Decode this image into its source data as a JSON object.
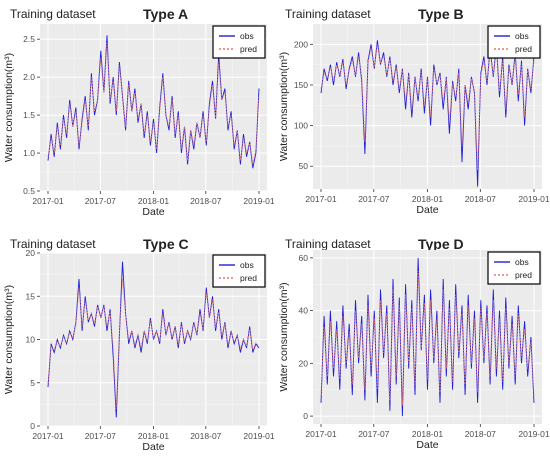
{
  "colors": {
    "panel_bg": "#ebebeb",
    "grid_major": "#ffffff",
    "grid_minor": "#f5f5f5",
    "obs": "#1f1fd6",
    "pred": "#e8776c",
    "text": "#222222",
    "tick_text": "#4d4d4d"
  },
  "legend": {
    "obs_label": "obs",
    "pred_label": "pred",
    "position": "top-right"
  },
  "chart_data": [
    {
      "type": "line",
      "supertitle": "Training dataset",
      "title": "Type A",
      "xlabel": "Date",
      "ylabel": "Water consumption(m³)",
      "ylim": [
        0.5,
        2.7
      ],
      "y_ticks": [
        "0.5",
        "1.0",
        "1.5",
        "2.0",
        "2.5"
      ],
      "y_tick_values": [
        0.5,
        1.0,
        1.5,
        2.0,
        2.5
      ],
      "x_ticks": [
        "2017-01",
        "2017-07",
        "2018-01",
        "2018-07",
        "2019-01"
      ],
      "x_range": [
        "2017-01-01",
        "2019-01-01"
      ],
      "grid": true,
      "series": [
        {
          "name": "obs",
          "style": "solid",
          "values": [
            0.9,
            1.25,
            0.95,
            1.4,
            1.05,
            1.5,
            1.2,
            1.7,
            1.35,
            1.6,
            1.05,
            1.45,
            1.75,
            1.3,
            2.05,
            1.5,
            1.7,
            2.35,
            1.8,
            2.55,
            1.65,
            2.0,
            1.5,
            2.2,
            1.75,
            1.3,
            1.95,
            1.55,
            1.85,
            1.4,
            1.65,
            1.2,
            1.55,
            1.1,
            1.45,
            1.0,
            1.6,
            2.05,
            1.5,
            1.3,
            1.75,
            1.2,
            1.55,
            1.0,
            1.35,
            0.85,
            1.3,
            1.05,
            1.4,
            1.2,
            1.55,
            1.1,
            1.65,
            1.95,
            1.45,
            2.3,
            1.7,
            1.85,
            1.3,
            1.55,
            1.05,
            1.3,
            0.85,
            1.25,
            0.95,
            1.15,
            0.8,
            1.0,
            1.85
          ]
        },
        {
          "name": "pred",
          "style": "dotted",
          "values": [
            0.95,
            1.2,
            1.0,
            1.35,
            1.1,
            1.45,
            1.25,
            1.65,
            1.35,
            1.55,
            1.1,
            1.4,
            1.7,
            1.35,
            2.0,
            1.55,
            1.7,
            2.25,
            1.8,
            2.45,
            1.7,
            1.95,
            1.55,
            2.15,
            1.75,
            1.35,
            1.9,
            1.55,
            1.8,
            1.45,
            1.65,
            1.25,
            1.5,
            1.15,
            1.4,
            1.05,
            1.55,
            2.0,
            1.5,
            1.35,
            1.7,
            1.25,
            1.5,
            1.05,
            1.35,
            0.9,
            1.3,
            1.1,
            1.4,
            1.2,
            1.5,
            1.15,
            1.6,
            1.9,
            1.45,
            2.2,
            1.7,
            1.8,
            1.35,
            1.5,
            1.1,
            1.3,
            0.9,
            1.2,
            1.0,
            1.15,
            0.85,
            1.05,
            1.75
          ]
        }
      ]
    },
    {
      "type": "line",
      "supertitle": "Training dataset",
      "title": "Type B",
      "xlabel": "Date",
      "ylabel": "Water consumption(m³)",
      "ylim": [
        22,
        225
      ],
      "y_ticks": [
        "50",
        "100",
        "150",
        "200"
      ],
      "y_tick_values": [
        50,
        100,
        150,
        200
      ],
      "x_ticks": [
        "2017-01",
        "2017-07",
        "2018-01",
        "2018-07",
        "2019-01"
      ],
      "x_range": [
        "2017-01-01",
        "2019-01-01"
      ],
      "grid": true,
      "series": [
        {
          "name": "obs",
          "style": "solid",
          "values": [
            140,
            170,
            155,
            175,
            150,
            178,
            160,
            182,
            145,
            170,
            185,
            160,
            190,
            155,
            65,
            180,
            200,
            170,
            205,
            175,
            190,
            160,
            185,
            150,
            175,
            140,
            170,
            120,
            165,
            110,
            160,
            130,
            170,
            115,
            160,
            100,
            175,
            150,
            165,
            120,
            160,
            90,
            155,
            130,
            170,
            55,
            150,
            120,
            160,
            140,
            25,
            165,
            185,
            150,
            195,
            160,
            200,
            135,
            185,
            110,
            175,
            150,
            190,
            130,
            180,
            100,
            170,
            140,
            185
          ]
        },
        {
          "name": "pred",
          "style": "dotted",
          "values": [
            145,
            165,
            158,
            172,
            155,
            175,
            162,
            178,
            150,
            168,
            180,
            162,
            185,
            160,
            80,
            178,
            195,
            172,
            200,
            176,
            186,
            162,
            182,
            155,
            172,
            145,
            168,
            130,
            162,
            120,
            158,
            135,
            166,
            125,
            158,
            110,
            170,
            152,
            162,
            130,
            158,
            105,
            152,
            135,
            165,
            75,
            150,
            128,
            158,
            142,
            45,
            162,
            180,
            155,
            190,
            162,
            195,
            142,
            180,
            120,
            172,
            152,
            185,
            138,
            176,
            110,
            168,
            145,
            180
          ]
        }
      ]
    },
    {
      "type": "line",
      "supertitle": "Training dataset",
      "title": "Type C",
      "xlabel": "Date",
      "ylabel": "Water consumption(m³)",
      "ylim": [
        0,
        20
      ],
      "y_ticks": [
        "0",
        "5",
        "10",
        "15",
        "20"
      ],
      "y_tick_values": [
        0,
        5,
        10,
        15,
        20
      ],
      "x_ticks": [
        "2017-01",
        "2017-07",
        "2018-01",
        "2018-07",
        "2019-01"
      ],
      "x_range": [
        "2017-01-01",
        "2019-01-01"
      ],
      "grid": true,
      "series": [
        {
          "name": "obs",
          "style": "solid",
          "values": [
            4.5,
            9.5,
            8.5,
            10,
            9,
            10.5,
            9.5,
            11,
            10,
            12,
            17,
            11,
            15,
            12,
            13,
            11.5,
            14,
            12.5,
            14,
            11,
            13.5,
            8,
            1,
            10.5,
            19,
            13,
            9.5,
            11,
            9,
            10.5,
            8.5,
            11,
            9.5,
            12.5,
            10,
            11,
            9.5,
            13.5,
            10.5,
            12,
            10,
            11.5,
            9,
            12,
            9.5,
            11,
            10,
            12,
            10.5,
            13.5,
            11,
            16,
            12.5,
            15,
            11,
            13.5,
            10,
            12,
            9,
            11,
            9.5,
            10.5,
            8.5,
            10,
            9,
            11.5,
            8.5,
            9.5,
            9
          ]
        },
        {
          "name": "pred",
          "style": "dotted",
          "values": [
            5,
            9.2,
            8.8,
            9.8,
            9.2,
            10.3,
            9.7,
            10.8,
            10.2,
            11.8,
            16,
            11.5,
            14.5,
            12.2,
            13,
            11.8,
            13.8,
            12.6,
            13.8,
            11.5,
            13.2,
            9,
            2,
            10.8,
            17,
            13,
            10,
            11,
            9.4,
            10.6,
            9,
            11,
            9.8,
            12.2,
            10.2,
            11,
            9.8,
            13,
            10.6,
            11.8,
            10.2,
            11.4,
            9.4,
            11.8,
            9.8,
            11,
            10.2,
            11.8,
            10.6,
            13,
            11.2,
            15.5,
            12.5,
            14.6,
            11.4,
            13.2,
            10.4,
            11.8,
            9.4,
            10.8,
            9.8,
            10.4,
            9,
            10,
            9.2,
            11.2,
            8.8,
            9.6,
            9.2
          ]
        }
      ]
    },
    {
      "type": "line",
      "supertitle": "Training dataset",
      "title": "Type D",
      "xlabel": "Date",
      "ylabel": "Water consumption(m³)",
      "ylim": [
        -3,
        63
      ],
      "y_ticks": [
        "0",
        "20",
        "40",
        "60"
      ],
      "y_tick_values": [
        0,
        20,
        40,
        60
      ],
      "x_ticks": [
        "2017-01",
        "2017-07",
        "2018-01",
        "2018-07",
        "2019-01"
      ],
      "x_range": [
        "2017-01-01",
        "2019-01-01"
      ],
      "grid": true,
      "series": [
        {
          "name": "obs",
          "style": "solid",
          "values": [
            5,
            38,
            12,
            40,
            15,
            36,
            10,
            42,
            18,
            35,
            8,
            44,
            20,
            38,
            6,
            46,
            15,
            40,
            5,
            48,
            22,
            42,
            2,
            52,
            12,
            45,
            0,
            50,
            18,
            44,
            8,
            60,
            25,
            46,
            10,
            48,
            20,
            40,
            5,
            52,
            15,
            44,
            10,
            50,
            22,
            42,
            8,
            46,
            18,
            40,
            5,
            44,
            20,
            42,
            12,
            48,
            15,
            40,
            10,
            45,
            18,
            38,
            12,
            42,
            20,
            36,
            15,
            30,
            5
          ]
        },
        {
          "name": "pred",
          "style": "dotted",
          "values": [
            8,
            34,
            15,
            36,
            18,
            33,
            14,
            38,
            20,
            32,
            12,
            40,
            22,
            35,
            10,
            42,
            18,
            37,
            10,
            44,
            24,
            39,
            6,
            48,
            15,
            42,
            4,
            46,
            20,
            41,
            12,
            55,
            26,
            43,
            14,
            44,
            22,
            37,
            9,
            48,
            18,
            41,
            13,
            46,
            24,
            39,
            12,
            42,
            20,
            37,
            9,
            41,
            22,
            39,
            15,
            44,
            18,
            37,
            13,
            41,
            20,
            35,
            15,
            39,
            22,
            33,
            18,
            28,
            8
          ]
        }
      ]
    }
  ]
}
